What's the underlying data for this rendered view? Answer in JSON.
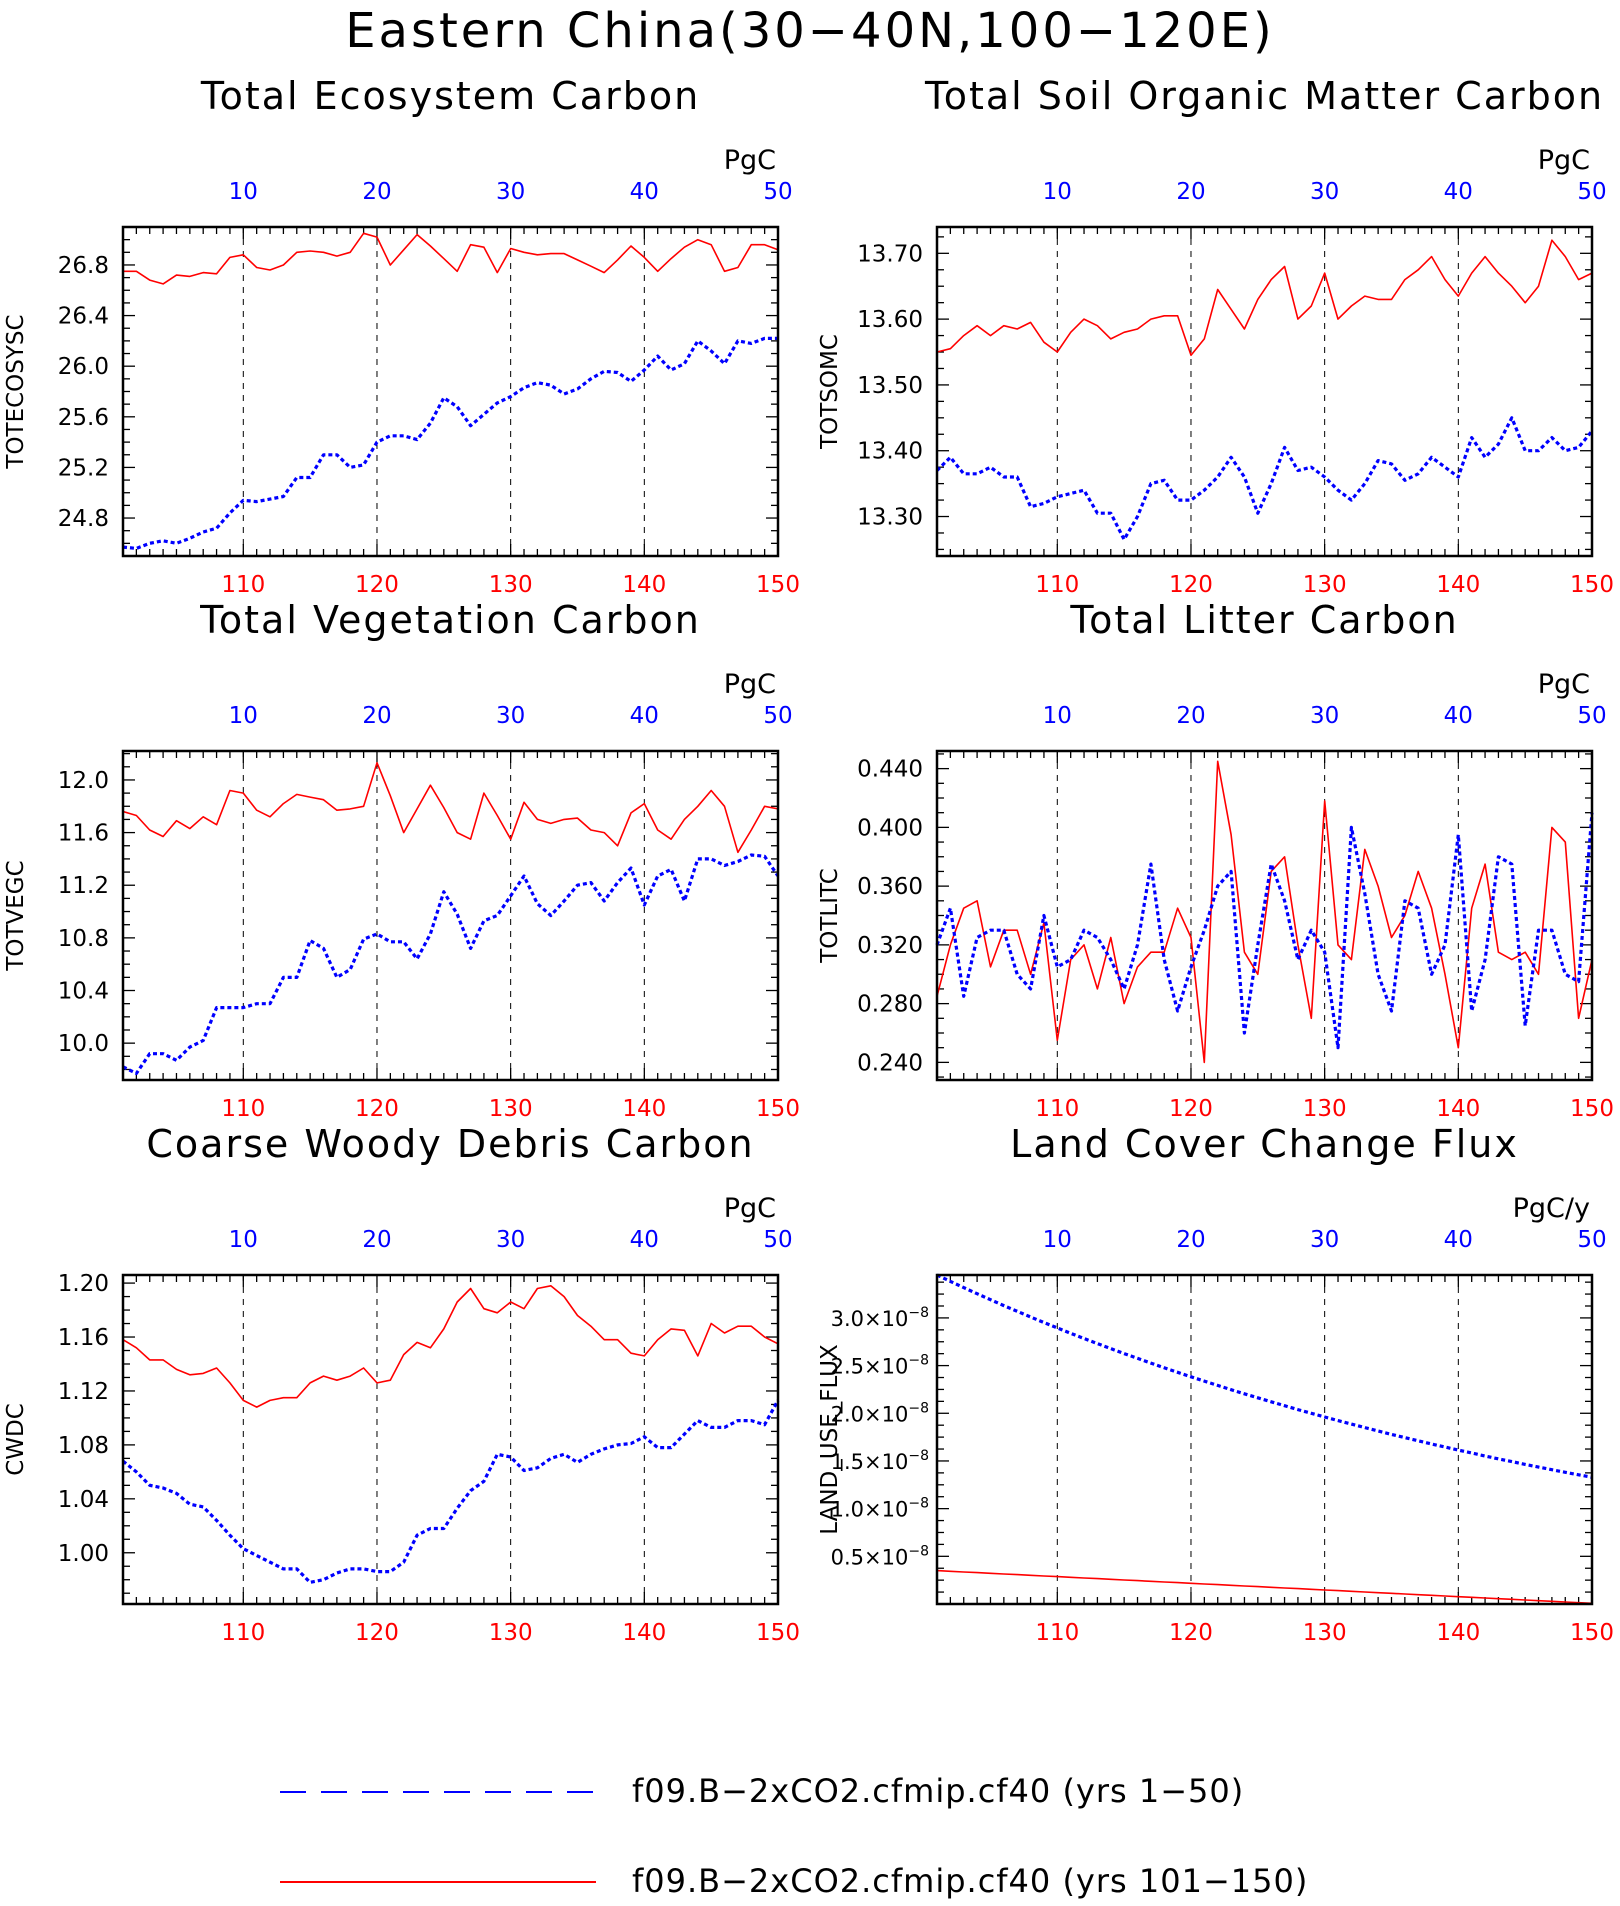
{
  "title": "Eastern China(30−40N,100−120E)",
  "legend": [
    {
      "label": "f09.B−2xCO2.cfmip.cf40 (yrs 1−50)",
      "color": "#0000ff",
      "style": "dashed"
    },
    {
      "label": "f09.B−2xCO2.cfmip.cf40 (yrs 101−150)",
      "color": "#ff0000",
      "style": "solid"
    }
  ],
  "colors": {
    "series_a": "#0000ff",
    "series_b": "#ff0000",
    "axis": "#000000"
  },
  "chart_data": [
    {
      "type": "line",
      "title": "Total Ecosystem Carbon",
      "ylabel": "TOTECOSYSC",
      "unit": "PgC",
      "x_bottom_range": [
        101,
        150
      ],
      "x_bottom_ticks": [
        110,
        120,
        130,
        140,
        150
      ],
      "x_top_range": [
        1,
        50
      ],
      "x_top_ticks": [
        10,
        20,
        30,
        40,
        50
      ],
      "ylim": [
        24.5,
        27.1
      ],
      "yticks": [
        24.8,
        25.2,
        25.6,
        26.0,
        26.4,
        26.8
      ],
      "ydec": 1,
      "grid": "vertical dashed",
      "series": [
        {
          "color": "#ff0000",
          "dash": "solid",
          "values": [
            26.75,
            26.75,
            26.68,
            26.65,
            26.72,
            26.71,
            26.74,
            26.73,
            26.86,
            26.88,
            26.78,
            26.76,
            26.8,
            26.9,
            26.91,
            26.9,
            26.87,
            26.9,
            27.05,
            27.02,
            26.8,
            26.92,
            27.04,
            26.95,
            26.85,
            26.75,
            26.96,
            26.94,
            26.74,
            26.93,
            26.9,
            26.88,
            26.89,
            26.89,
            26.84,
            26.79,
            26.74,
            26.84,
            26.95,
            26.86,
            26.75,
            26.85,
            26.94,
            27.0,
            26.96,
            26.75,
            26.78,
            26.96,
            26.96,
            26.92
          ]
        },
        {
          "color": "#0000ff",
          "dash": "dotted",
          "values": [
            24.57,
            24.56,
            24.6,
            24.62,
            24.6,
            24.64,
            24.69,
            24.72,
            24.84,
            24.94,
            24.93,
            24.95,
            24.97,
            25.12,
            25.12,
            25.3,
            25.3,
            25.2,
            25.22,
            25.4,
            25.45,
            25.45,
            25.42,
            25.55,
            25.75,
            25.68,
            25.53,
            25.62,
            25.71,
            25.76,
            25.83,
            25.87,
            25.85,
            25.78,
            25.82,
            25.9,
            25.96,
            25.95,
            25.88,
            25.97,
            26.08,
            25.97,
            26.02,
            26.2,
            26.12,
            26.02,
            26.2,
            26.18,
            26.22,
            26.22
          ]
        }
      ]
    },
    {
      "type": "line",
      "title": "Total Soil Organic Matter Carbon",
      "ylabel": "TOTSOMC",
      "unit": "PgC",
      "x_bottom_range": [
        101,
        150
      ],
      "x_bottom_ticks": [
        110,
        120,
        130,
        140,
        150
      ],
      "x_top_range": [
        1,
        50
      ],
      "x_top_ticks": [
        10,
        20,
        30,
        40,
        50
      ],
      "ylim": [
        13.24,
        13.74
      ],
      "yticks": [
        13.3,
        13.4,
        13.5,
        13.6,
        13.7
      ],
      "ydec": 2,
      "grid": "vertical dashed",
      "series": [
        {
          "color": "#ff0000",
          "dash": "solid",
          "values": [
            13.55,
            13.555,
            13.575,
            13.59,
            13.575,
            13.59,
            13.585,
            13.595,
            13.565,
            13.55,
            13.58,
            13.6,
            13.59,
            13.57,
            13.58,
            13.585,
            13.6,
            13.605,
            13.605,
            13.545,
            13.57,
            13.645,
            13.615,
            13.585,
            13.63,
            13.66,
            13.68,
            13.6,
            13.62,
            13.67,
            13.6,
            13.62,
            13.635,
            13.63,
            13.63,
            13.66,
            13.675,
            13.695,
            13.66,
            13.635,
            13.67,
            13.695,
            13.67,
            13.65,
            13.625,
            13.65,
            13.72,
            13.695,
            13.66,
            13.67
          ]
        },
        {
          "color": "#0000ff",
          "dash": "dotted",
          "values": [
            13.37,
            13.39,
            13.365,
            13.365,
            13.375,
            13.36,
            13.36,
            13.315,
            13.32,
            13.33,
            13.335,
            13.34,
            13.305,
            13.305,
            13.265,
            13.3,
            13.35,
            13.355,
            13.325,
            13.325,
            13.34,
            13.36,
            13.39,
            13.36,
            13.305,
            13.35,
            13.405,
            13.37,
            13.375,
            13.36,
            13.34,
            13.325,
            13.35,
            13.385,
            13.38,
            13.355,
            13.365,
            13.39,
            13.375,
            13.36,
            13.42,
            13.39,
            13.41,
            13.45,
            13.4,
            13.4,
            13.42,
            13.4,
            13.405,
            13.43
          ]
        }
      ]
    },
    {
      "type": "line",
      "title": "Total Vegetation Carbon",
      "ylabel": "TOTVEGC",
      "unit": "PgC",
      "x_bottom_range": [
        101,
        150
      ],
      "x_bottom_ticks": [
        110,
        120,
        130,
        140,
        150
      ],
      "x_top_range": [
        1,
        50
      ],
      "x_top_ticks": [
        10,
        20,
        30,
        40,
        50
      ],
      "ylim": [
        9.72,
        12.22
      ],
      "yticks": [
        10.0,
        10.4,
        10.8,
        11.2,
        11.6,
        12.0
      ],
      "ydec": 1,
      "grid": "vertical dashed",
      "series": [
        {
          "color": "#ff0000",
          "dash": "solid",
          "values": [
            11.76,
            11.73,
            11.62,
            11.57,
            11.69,
            11.63,
            11.72,
            11.66,
            11.92,
            11.9,
            11.77,
            11.72,
            11.82,
            11.89,
            11.87,
            11.85,
            11.77,
            11.78,
            11.8,
            12.13,
            11.88,
            11.6,
            11.78,
            11.96,
            11.79,
            11.6,
            11.55,
            11.9,
            11.73,
            11.55,
            11.83,
            11.7,
            11.67,
            11.7,
            11.71,
            11.62,
            11.6,
            11.5,
            11.75,
            11.82,
            11.62,
            11.55,
            11.7,
            11.8,
            11.92,
            11.8,
            11.45,
            11.62,
            11.8,
            11.78
          ]
        },
        {
          "color": "#0000ff",
          "dash": "dotted",
          "values": [
            9.82,
            9.77,
            9.92,
            9.92,
            9.87,
            9.97,
            10.02,
            10.27,
            10.27,
            10.27,
            10.3,
            10.3,
            10.5,
            10.5,
            10.78,
            10.72,
            10.5,
            10.56,
            10.79,
            10.83,
            10.77,
            10.77,
            10.64,
            10.83,
            11.15,
            10.98,
            10.72,
            10.93,
            10.97,
            11.12,
            11.27,
            11.06,
            10.97,
            11.08,
            11.2,
            11.22,
            11.08,
            11.22,
            11.33,
            11.05,
            11.27,
            11.32,
            11.08,
            11.4,
            11.4,
            11.35,
            11.38,
            11.43,
            11.42,
            11.27
          ]
        }
      ]
    },
    {
      "type": "line",
      "title": "Total Litter Carbon",
      "ylabel": "TOTLITC",
      "unit": "PgC",
      "x_bottom_range": [
        101,
        150
      ],
      "x_bottom_ticks": [
        110,
        120,
        130,
        140,
        150
      ],
      "x_top_range": [
        1,
        50
      ],
      "x_top_ticks": [
        10,
        20,
        30,
        40,
        50
      ],
      "ylim": [
        0.228,
        0.452
      ],
      "yticks": [
        0.24,
        0.28,
        0.32,
        0.36,
        0.4,
        0.44
      ],
      "ydec": 3,
      "grid": "vertical dashed",
      "series": [
        {
          "color": "#ff0000",
          "dash": "solid",
          "values": [
            0.285,
            0.32,
            0.345,
            0.35,
            0.305,
            0.33,
            0.33,
            0.3,
            0.335,
            0.255,
            0.31,
            0.32,
            0.29,
            0.325,
            0.28,
            0.305,
            0.315,
            0.315,
            0.345,
            0.325,
            0.24,
            0.445,
            0.395,
            0.315,
            0.3,
            0.37,
            0.38,
            0.32,
            0.27,
            0.418,
            0.32,
            0.31,
            0.385,
            0.36,
            0.325,
            0.34,
            0.37,
            0.345,
            0.3,
            0.25,
            0.345,
            0.375,
            0.315,
            0.31,
            0.315,
            0.3,
            0.4,
            0.39,
            0.27,
            0.31
          ]
        },
        {
          "color": "#0000ff",
          "dash": "dotted",
          "values": [
            0.32,
            0.345,
            0.285,
            0.325,
            0.33,
            0.33,
            0.3,
            0.29,
            0.34,
            0.305,
            0.31,
            0.33,
            0.325,
            0.31,
            0.29,
            0.32,
            0.375,
            0.31,
            0.275,
            0.305,
            0.33,
            0.36,
            0.37,
            0.26,
            0.32,
            0.375,
            0.35,
            0.31,
            0.33,
            0.315,
            0.25,
            0.4,
            0.355,
            0.3,
            0.275,
            0.35,
            0.345,
            0.3,
            0.32,
            0.395,
            0.275,
            0.31,
            0.38,
            0.375,
            0.265,
            0.33,
            0.33,
            0.3,
            0.295,
            0.41
          ]
        }
      ]
    },
    {
      "type": "line",
      "title": "Coarse Woody Debris Carbon",
      "ylabel": "CWDC",
      "unit": "PgC",
      "x_bottom_range": [
        101,
        150
      ],
      "x_bottom_ticks": [
        110,
        120,
        130,
        140,
        150
      ],
      "x_top_range": [
        1,
        50
      ],
      "x_top_ticks": [
        10,
        20,
        30,
        40,
        50
      ],
      "ylim": [
        0.962,
        1.206
      ],
      "yticks": [
        1.0,
        1.04,
        1.08,
        1.12,
        1.16,
        1.2
      ],
      "ydec": 2,
      "grid": "vertical dashed",
      "series": [
        {
          "color": "#ff0000",
          "dash": "solid",
          "values": [
            1.158,
            1.152,
            1.143,
            1.143,
            1.136,
            1.132,
            1.133,
            1.137,
            1.126,
            1.113,
            1.108,
            1.113,
            1.115,
            1.115,
            1.126,
            1.131,
            1.128,
            1.131,
            1.137,
            1.126,
            1.128,
            1.147,
            1.156,
            1.152,
            1.166,
            1.186,
            1.196,
            1.181,
            1.178,
            1.186,
            1.181,
            1.196,
            1.198,
            1.19,
            1.176,
            1.168,
            1.158,
            1.158,
            1.148,
            1.146,
            1.158,
            1.166,
            1.165,
            1.146,
            1.17,
            1.163,
            1.168,
            1.168,
            1.16,
            1.155
          ]
        },
        {
          "color": "#0000ff",
          "dash": "dotted",
          "values": [
            1.068,
            1.06,
            1.05,
            1.048,
            1.044,
            1.036,
            1.034,
            1.024,
            1.013,
            1.003,
            0.998,
            0.993,
            0.988,
            0.988,
            0.978,
            0.98,
            0.985,
            0.988,
            0.988,
            0.986,
            0.986,
            0.993,
            1.013,
            1.018,
            1.018,
            1.033,
            1.046,
            1.053,
            1.073,
            1.071,
            1.061,
            1.063,
            1.07,
            1.073,
            1.067,
            1.073,
            1.077,
            1.08,
            1.081,
            1.086,
            1.078,
            1.078,
            1.088,
            1.098,
            1.093,
            1.093,
            1.098,
            1.098,
            1.095,
            1.113
          ]
        }
      ]
    },
    {
      "type": "line",
      "title": "Land Cover Change Flux",
      "ylabel": "LAND_USE_FLUX",
      "unit": "PgC/y",
      "x_bottom_range": [
        101,
        150
      ],
      "x_bottom_ticks": [
        110,
        120,
        130,
        140,
        150
      ],
      "x_top_range": [
        1,
        50
      ],
      "x_top_ticks": [
        10,
        20,
        30,
        40,
        50
      ],
      "ylim": [
        0.0,
        3.45
      ],
      "yticks": [
        0.5,
        1.0,
        1.5,
        2.0,
        2.5,
        3.0
      ],
      "ydec": 1,
      "ytick_suffix": "×10",
      "ytick_exponent": "−8",
      "grid": "vertical dashed",
      "series": [
        {
          "color": "#ff0000",
          "dash": "solid",
          "values": [
            0.35,
            0.343,
            0.336,
            0.329,
            0.322,
            0.315,
            0.308,
            0.301,
            0.294,
            0.287,
            0.28,
            0.273,
            0.266,
            0.259,
            0.252,
            0.245,
            0.238,
            0.231,
            0.224,
            0.217,
            0.21,
            0.203,
            0.196,
            0.189,
            0.182,
            0.175,
            0.168,
            0.161,
            0.154,
            0.147,
            0.14,
            0.133,
            0.126,
            0.119,
            0.112,
            0.105,
            0.098,
            0.091,
            0.084,
            0.077,
            0.07,
            0.063,
            0.056,
            0.049,
            0.042,
            0.035,
            0.028,
            0.021,
            0.014,
            0.007
          ]
        },
        {
          "color": "#0000ff",
          "dash": "dotted",
          "values": [
            3.45,
            3.383,
            3.318,
            3.254,
            3.191,
            3.129,
            3.069,
            3.01,
            2.952,
            2.895,
            2.839,
            2.784,
            2.731,
            2.678,
            2.626,
            2.576,
            2.526,
            2.477,
            2.43,
            2.383,
            2.337,
            2.292,
            2.247,
            2.204,
            2.162,
            2.12,
            2.079,
            2.039,
            2.0,
            1.961,
            1.923,
            1.886,
            1.85,
            1.814,
            1.779,
            1.745,
            1.711,
            1.678,
            1.646,
            1.614,
            1.583,
            1.552,
            1.522,
            1.493,
            1.464,
            1.436,
            1.408,
            1.381,
            1.355,
            1.329
          ]
        }
      ]
    }
  ]
}
